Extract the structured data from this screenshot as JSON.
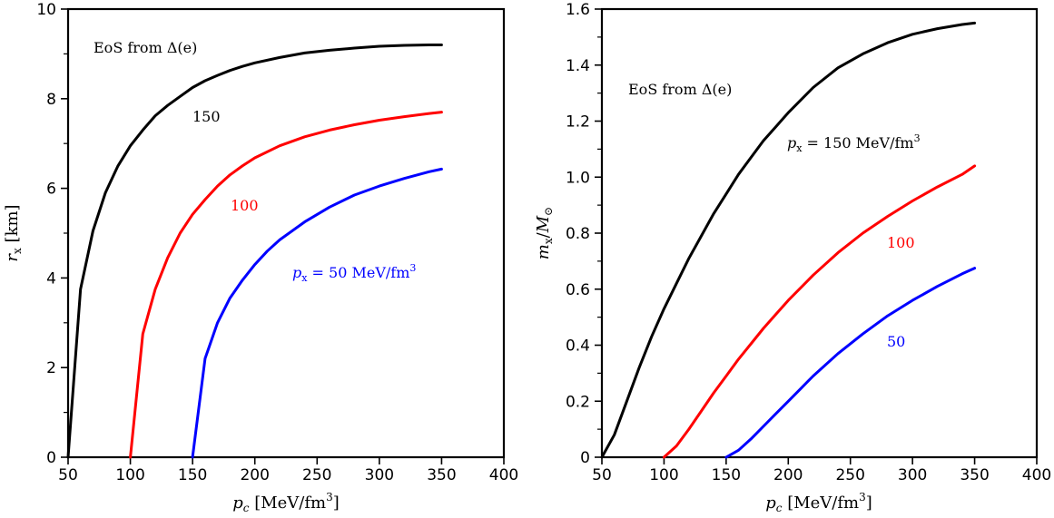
{
  "chart_data": [
    {
      "type": "line",
      "ylabel": "r_x [km]",
      "ylabel_parts": {
        "sym": "r",
        "sub": "x",
        "unit": " [km]"
      },
      "xlabel_parts": {
        "sym": "p",
        "sub": "c",
        "unit": " [MeV/fm",
        "sup": "3",
        "close": "]"
      },
      "xlim": [
        50,
        400
      ],
      "ylim": [
        0,
        10
      ],
      "xticks": [
        "50",
        "100",
        "150",
        "200",
        "250",
        "300",
        "350",
        "400"
      ],
      "yticks": [
        "0",
        "2",
        "4",
        "6",
        "8",
        "10"
      ],
      "grid": false,
      "annotations": {
        "eos": "EoS from Δ(e)",
        "label_150": "150",
        "label_100": "100",
        "label_50": {
          "sym": "p",
          "sub": "x",
          "text": " = 50 MeV/fm",
          "sup": "3"
        }
      },
      "series": [
        {
          "color": "#000000",
          "x": [
            50,
            60,
            70,
            80,
            90,
            100,
            110,
            120,
            130,
            140,
            150,
            160,
            170,
            180,
            190,
            200,
            220,
            240,
            260,
            280,
            300,
            320,
            340,
            350
          ],
          "y": [
            0,
            3.75,
            5.05,
            5.9,
            6.5,
            6.95,
            7.3,
            7.62,
            7.85,
            8.05,
            8.25,
            8.4,
            8.52,
            8.63,
            8.72,
            8.8,
            8.92,
            9.02,
            9.08,
            9.13,
            9.17,
            9.19,
            9.2,
            9.2
          ]
        },
        {
          "color": "#ff0000",
          "x": [
            100,
            110,
            120,
            130,
            140,
            150,
            160,
            170,
            180,
            190,
            200,
            220,
            240,
            260,
            280,
            300,
            320,
            340,
            350
          ],
          "y": [
            0,
            2.75,
            3.75,
            4.45,
            5.0,
            5.42,
            5.75,
            6.05,
            6.3,
            6.5,
            6.68,
            6.95,
            7.15,
            7.3,
            7.42,
            7.52,
            7.6,
            7.67,
            7.7
          ]
        },
        {
          "color": "#0000ff",
          "x": [
            150,
            160,
            170,
            180,
            190,
            200,
            210,
            220,
            240,
            260,
            280,
            300,
            320,
            340,
            350
          ],
          "y": [
            0,
            2.2,
            3.0,
            3.55,
            3.95,
            4.3,
            4.6,
            4.85,
            5.25,
            5.58,
            5.85,
            6.05,
            6.22,
            6.37,
            6.43
          ]
        }
      ]
    },
    {
      "type": "line",
      "ylabel": "m_x/M_⊙",
      "ylabel_parts": {
        "sym": "m",
        "sub": "x",
        "mid": "/",
        "sym2": "M",
        "sub2": "⊙"
      },
      "xlabel_parts": {
        "sym": "p",
        "sub": "c",
        "unit": " [MeV/fm",
        "sup": "3",
        "close": "]"
      },
      "xlim": [
        50,
        400
      ],
      "ylim": [
        0,
        1.6
      ],
      "xticks": [
        "50",
        "100",
        "150",
        "200",
        "250",
        "300",
        "350",
        "400"
      ],
      "yticks": [
        "0",
        "0.2",
        "0.4",
        "0.6",
        "0.8",
        "1.0",
        "1.2",
        "1.4",
        "1.6"
      ],
      "grid": false,
      "annotations": {
        "eos": "EoS from Δ(e)",
        "label_150": {
          "sym": "p",
          "sub": "x",
          "text": " = 150 MeV/fm",
          "sup": "3"
        },
        "label_100": "100",
        "label_50": "50"
      },
      "series": [
        {
          "color": "#000000",
          "x": [
            50,
            60,
            70,
            80,
            90,
            100,
            110,
            120,
            130,
            140,
            150,
            160,
            170,
            180,
            190,
            200,
            220,
            240,
            260,
            280,
            300,
            320,
            340,
            350
          ],
          "y": [
            0,
            0.08,
            0.2,
            0.32,
            0.43,
            0.53,
            0.62,
            0.71,
            0.79,
            0.87,
            0.94,
            1.01,
            1.07,
            1.13,
            1.18,
            1.23,
            1.32,
            1.39,
            1.44,
            1.48,
            1.51,
            1.53,
            1.545,
            1.55
          ]
        },
        {
          "color": "#ff0000",
          "x": [
            100,
            110,
            120,
            130,
            140,
            150,
            160,
            170,
            180,
            190,
            200,
            220,
            240,
            260,
            280,
            300,
            320,
            340,
            350
          ],
          "y": [
            0,
            0.04,
            0.1,
            0.165,
            0.23,
            0.29,
            0.35,
            0.405,
            0.46,
            0.51,
            0.56,
            0.65,
            0.73,
            0.8,
            0.86,
            0.915,
            0.965,
            1.01,
            1.04
          ]
        },
        {
          "color": "#0000ff",
          "x": [
            150,
            160,
            170,
            180,
            190,
            200,
            210,
            220,
            240,
            260,
            280,
            300,
            320,
            340,
            350
          ],
          "y": [
            0,
            0.025,
            0.065,
            0.11,
            0.155,
            0.2,
            0.245,
            0.29,
            0.37,
            0.44,
            0.505,
            0.56,
            0.61,
            0.655,
            0.675
          ]
        }
      ]
    }
  ]
}
